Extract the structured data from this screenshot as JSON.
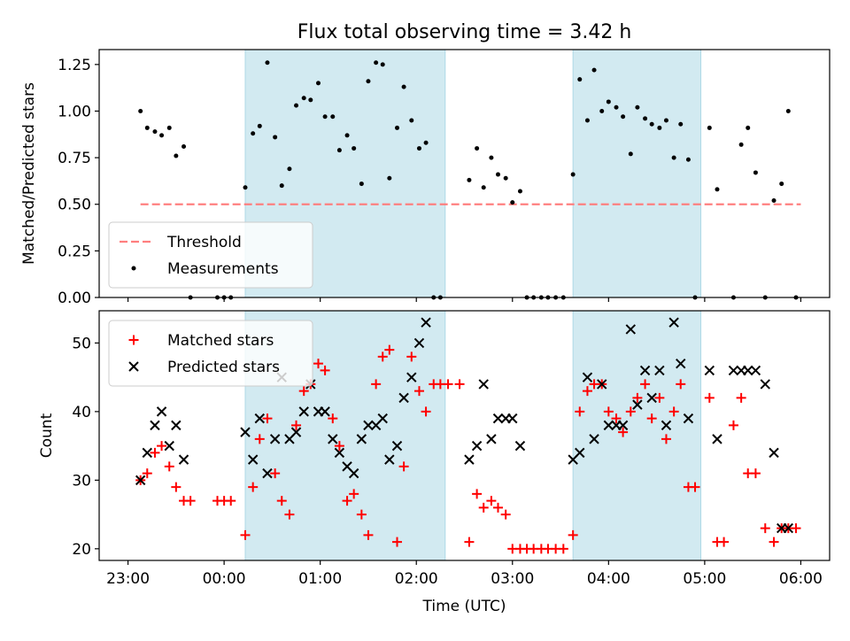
{
  "figure": {
    "title": "Flux total observing time = 3.42 h",
    "xlabel": "Time (UTC)"
  },
  "chart_data": [
    {
      "type": "scatter",
      "title": "Flux total observing time = 3.42 h",
      "ylabel": "Matched/Predicted stars",
      "xlabel": "Time (UTC)",
      "x_unit": "hours after 23:00 UTC",
      "xlim": [
        -0.3,
        7.3
      ],
      "ylim": [
        0.0,
        1.33
      ],
      "xticks": [
        0,
        1,
        2,
        3,
        4,
        5,
        6,
        7
      ],
      "xtick_labels": [
        "23:00",
        "00:00",
        "01:00",
        "02:00",
        "03:00",
        "04:00",
        "05:00",
        "06:00"
      ],
      "yticks": [
        0.0,
        0.25,
        0.5,
        0.75,
        1.0,
        1.25
      ],
      "ytick_labels": [
        "0.00",
        "0.25",
        "0.50",
        "0.75",
        "1.00",
        "1.25"
      ],
      "legend_position": "lower-left",
      "shaded_spans": [
        [
          1.22,
          3.3
        ],
        [
          4.63,
          5.96
        ]
      ],
      "shade_color": "#add8e6",
      "threshold": {
        "name": "Threshold",
        "y": 0.5,
        "x_range": [
          0.13,
          7.0
        ],
        "color": "#ff7f7f"
      },
      "series": [
        {
          "name": "Measurements",
          "color": "#000000",
          "points": [
            [
              0.13,
              1.0
            ],
            [
              0.2,
              0.91
            ],
            [
              0.28,
              0.89
            ],
            [
              0.35,
              0.87
            ],
            [
              0.43,
              0.91
            ],
            [
              0.5,
              0.76
            ],
            [
              0.58,
              0.81
            ],
            [
              0.65,
              0.0
            ],
            [
              0.93,
              0.0
            ],
            [
              1.0,
              0.0
            ],
            [
              1.07,
              0.0
            ],
            [
              1.22,
              0.59
            ],
            [
              1.3,
              0.88
            ],
            [
              1.37,
              0.92
            ],
            [
              1.45,
              1.26
            ],
            [
              1.53,
              0.86
            ],
            [
              1.6,
              0.6
            ],
            [
              1.68,
              0.69
            ],
            [
              1.75,
              1.03
            ],
            [
              1.83,
              1.07
            ],
            [
              1.9,
              1.06
            ],
            [
              1.98,
              1.15
            ],
            [
              2.05,
              0.97
            ],
            [
              2.13,
              0.97
            ],
            [
              2.2,
              0.79
            ],
            [
              2.28,
              0.87
            ],
            [
              2.35,
              0.8
            ],
            [
              2.43,
              0.61
            ],
            [
              2.5,
              1.16
            ],
            [
              2.58,
              1.26
            ],
            [
              2.65,
              1.25
            ],
            [
              2.72,
              0.64
            ],
            [
              2.8,
              0.91
            ],
            [
              2.87,
              1.13
            ],
            [
              2.95,
              0.95
            ],
            [
              3.03,
              0.8
            ],
            [
              3.1,
              0.83
            ],
            [
              3.18,
              0.0
            ],
            [
              3.25,
              0.0
            ],
            [
              3.55,
              0.63
            ],
            [
              3.63,
              0.8
            ],
            [
              3.7,
              0.59
            ],
            [
              3.78,
              0.75
            ],
            [
              3.85,
              0.66
            ],
            [
              3.93,
              0.64
            ],
            [
              4.0,
              0.51
            ],
            [
              4.08,
              0.57
            ],
            [
              4.15,
              0.0
            ],
            [
              4.22,
              0.0
            ],
            [
              4.3,
              0.0
            ],
            [
              4.37,
              0.0
            ],
            [
              4.45,
              0.0
            ],
            [
              4.53,
              0.0
            ],
            [
              4.63,
              0.66
            ],
            [
              4.7,
              1.17
            ],
            [
              4.78,
              0.95
            ],
            [
              4.85,
              1.22
            ],
            [
              4.93,
              1.0
            ],
            [
              5.0,
              1.05
            ],
            [
              5.08,
              1.02
            ],
            [
              5.15,
              0.97
            ],
            [
              5.23,
              0.77
            ],
            [
              5.3,
              1.02
            ],
            [
              5.38,
              0.96
            ],
            [
              5.45,
              0.93
            ],
            [
              5.53,
              0.91
            ],
            [
              5.6,
              0.95
            ],
            [
              5.68,
              0.75
            ],
            [
              5.75,
              0.93
            ],
            [
              5.83,
              0.74
            ],
            [
              5.9,
              0.0
            ],
            [
              6.05,
              0.91
            ],
            [
              6.13,
              0.58
            ],
            [
              6.3,
              0.0
            ],
            [
              6.38,
              0.82
            ],
            [
              6.45,
              0.91
            ],
            [
              6.53,
              0.67
            ],
            [
              6.63,
              0.0
            ],
            [
              6.72,
              0.52
            ],
            [
              6.8,
              0.61
            ],
            [
              6.87,
              1.0
            ],
            [
              6.95,
              0.0
            ]
          ]
        }
      ]
    },
    {
      "type": "scatter",
      "ylabel": "Count",
      "xlabel": "Time (UTC)",
      "x_unit": "hours after 23:00 UTC",
      "xlim": [
        -0.3,
        7.3
      ],
      "ylim": [
        18.3,
        54.7
      ],
      "xticks": [
        0,
        1,
        2,
        3,
        4,
        5,
        6,
        7
      ],
      "xtick_labels": [
        "23:00",
        "00:00",
        "01:00",
        "02:00",
        "03:00",
        "04:00",
        "05:00",
        "06:00"
      ],
      "yticks": [
        20,
        30,
        40,
        50
      ],
      "ytick_labels": [
        "20",
        "30",
        "40",
        "50"
      ],
      "legend_position": "upper-left",
      "shaded_spans": [
        [
          1.22,
          3.3
        ],
        [
          4.63,
          5.96
        ]
      ],
      "shade_color": "#add8e6",
      "series": [
        {
          "name": "Matched stars",
          "color": "#ff0000",
          "marker": "plus",
          "points": [
            [
              0.13,
              30
            ],
            [
              0.2,
              31
            ],
            [
              0.28,
              34
            ],
            [
              0.35,
              35
            ],
            [
              0.43,
              32
            ],
            [
              0.5,
              29
            ],
            [
              0.58,
              27
            ],
            [
              0.65,
              27
            ],
            [
              0.93,
              27
            ],
            [
              1.0,
              27
            ],
            [
              1.07,
              27
            ],
            [
              1.22,
              22
            ],
            [
              1.3,
              29
            ],
            [
              1.37,
              36
            ],
            [
              1.45,
              39
            ],
            [
              1.53,
              31
            ],
            [
              1.6,
              27
            ],
            [
              1.68,
              25
            ],
            [
              1.75,
              38
            ],
            [
              1.83,
              43
            ],
            [
              1.9,
              44
            ],
            [
              1.98,
              47
            ],
            [
              2.05,
              46
            ],
            [
              2.13,
              39
            ],
            [
              2.2,
              35
            ],
            [
              2.28,
              27
            ],
            [
              2.35,
              28
            ],
            [
              2.43,
              25
            ],
            [
              2.5,
              22
            ],
            [
              2.58,
              44
            ],
            [
              2.65,
              48
            ],
            [
              2.72,
              49
            ],
            [
              2.8,
              21
            ],
            [
              2.87,
              32
            ],
            [
              2.95,
              48
            ],
            [
              3.03,
              43
            ],
            [
              3.1,
              40
            ],
            [
              3.18,
              44
            ],
            [
              3.25,
              44
            ],
            [
              3.33,
              44
            ],
            [
              3.45,
              44
            ],
            [
              3.55,
              21
            ],
            [
              3.63,
              28
            ],
            [
              3.7,
              26
            ],
            [
              3.78,
              27
            ],
            [
              3.85,
              26
            ],
            [
              3.93,
              25
            ],
            [
              4.0,
              20
            ],
            [
              4.08,
              20
            ],
            [
              4.15,
              20
            ],
            [
              4.22,
              20
            ],
            [
              4.3,
              20
            ],
            [
              4.37,
              20
            ],
            [
              4.45,
              20
            ],
            [
              4.53,
              20
            ],
            [
              4.63,
              22
            ],
            [
              4.7,
              40
            ],
            [
              4.78,
              43
            ],
            [
              4.85,
              44
            ],
            [
              4.93,
              44
            ],
            [
              5.0,
              40
            ],
            [
              5.08,
              39
            ],
            [
              5.15,
              37
            ],
            [
              5.23,
              40
            ],
            [
              5.3,
              42
            ],
            [
              5.38,
              44
            ],
            [
              5.45,
              39
            ],
            [
              5.53,
              42
            ],
            [
              5.6,
              36
            ],
            [
              5.68,
              40
            ],
            [
              5.75,
              44
            ],
            [
              5.83,
              29
            ],
            [
              5.9,
              29
            ],
            [
              6.05,
              42
            ],
            [
              6.13,
              21
            ],
            [
              6.2,
              21
            ],
            [
              6.3,
              38
            ],
            [
              6.38,
              42
            ],
            [
              6.45,
              31
            ],
            [
              6.53,
              31
            ],
            [
              6.63,
              23
            ],
            [
              6.72,
              21
            ],
            [
              6.8,
              23
            ],
            [
              6.87,
              23
            ],
            [
              6.95,
              23
            ]
          ]
        },
        {
          "name": "Predicted stars",
          "color": "#000000",
          "marker": "x",
          "points": [
            [
              0.13,
              30
            ],
            [
              0.2,
              34
            ],
            [
              0.28,
              38
            ],
            [
              0.35,
              40
            ],
            [
              0.43,
              35
            ],
            [
              0.5,
              38
            ],
            [
              0.58,
              33
            ],
            [
              1.22,
              37
            ],
            [
              1.3,
              33
            ],
            [
              1.37,
              39
            ],
            [
              1.45,
              31
            ],
            [
              1.53,
              36
            ],
            [
              1.6,
              45
            ],
            [
              1.68,
              36
            ],
            [
              1.75,
              37
            ],
            [
              1.83,
              40
            ],
            [
              1.9,
              44
            ],
            [
              1.98,
              40
            ],
            [
              2.05,
              40
            ],
            [
              2.13,
              36
            ],
            [
              2.2,
              34
            ],
            [
              2.28,
              32
            ],
            [
              2.35,
              31
            ],
            [
              2.43,
              36
            ],
            [
              2.5,
              38
            ],
            [
              2.58,
              38
            ],
            [
              2.65,
              39
            ],
            [
              2.72,
              33
            ],
            [
              2.8,
              35
            ],
            [
              2.87,
              42
            ],
            [
              2.95,
              45
            ],
            [
              3.03,
              50
            ],
            [
              3.1,
              53
            ],
            [
              3.55,
              33
            ],
            [
              3.63,
              35
            ],
            [
              3.7,
              44
            ],
            [
              3.78,
              36
            ],
            [
              3.85,
              39
            ],
            [
              3.93,
              39
            ],
            [
              4.0,
              39
            ],
            [
              4.08,
              35
            ],
            [
              4.63,
              33
            ],
            [
              4.7,
              34
            ],
            [
              4.78,
              45
            ],
            [
              4.85,
              36
            ],
            [
              4.93,
              44
            ],
            [
              5.0,
              38
            ],
            [
              5.08,
              38
            ],
            [
              5.15,
              38
            ],
            [
              5.23,
              52
            ],
            [
              5.3,
              41
            ],
            [
              5.38,
              46
            ],
            [
              5.45,
              42
            ],
            [
              5.53,
              46
            ],
            [
              5.6,
              38
            ],
            [
              5.68,
              53
            ],
            [
              5.75,
              47
            ],
            [
              5.83,
              39
            ],
            [
              6.05,
              46
            ],
            [
              6.13,
              36
            ],
            [
              6.3,
              46
            ],
            [
              6.38,
              46
            ],
            [
              6.45,
              46
            ],
            [
              6.53,
              46
            ],
            [
              6.63,
              44
            ],
            [
              6.72,
              34
            ],
            [
              6.8,
              23
            ],
            [
              6.87,
              23
            ]
          ]
        }
      ]
    }
  ]
}
